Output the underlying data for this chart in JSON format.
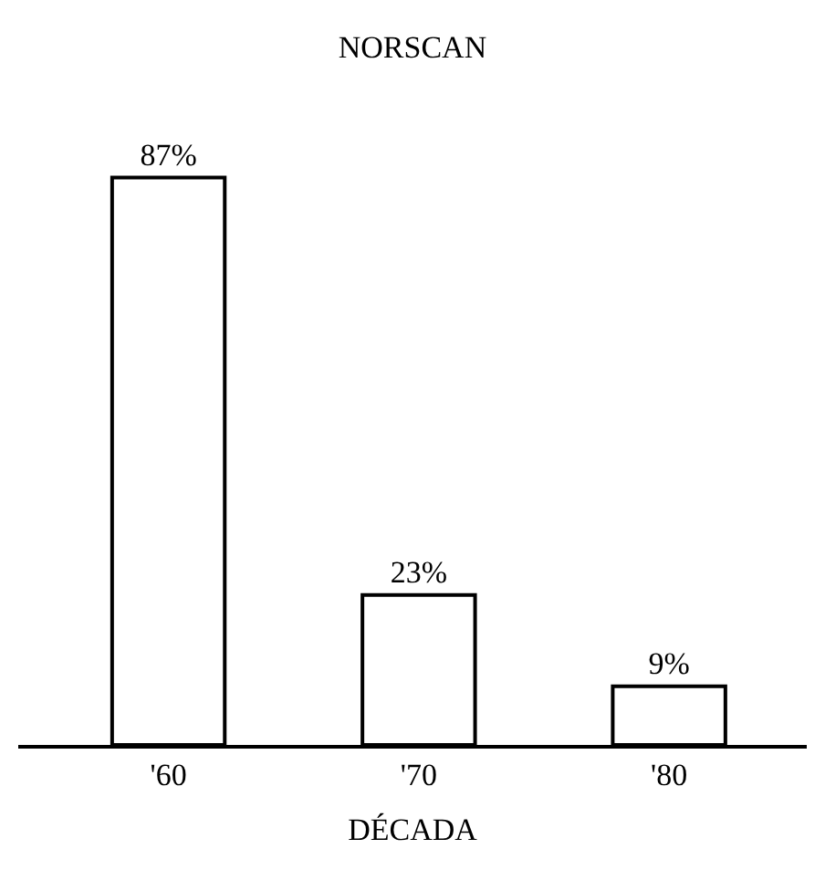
{
  "chart_data": {
    "type": "bar",
    "title": "NORSCAN",
    "xlabel": "DÉCADA",
    "categories": [
      "'60",
      "'70",
      "'80"
    ],
    "series": [
      {
        "color": "#ffffff",
        "values": [
          87,
          23,
          9
        ],
        "value_labels": [
          "87%",
          "23%",
          "9%"
        ]
      }
    ],
    "legend": false
  }
}
